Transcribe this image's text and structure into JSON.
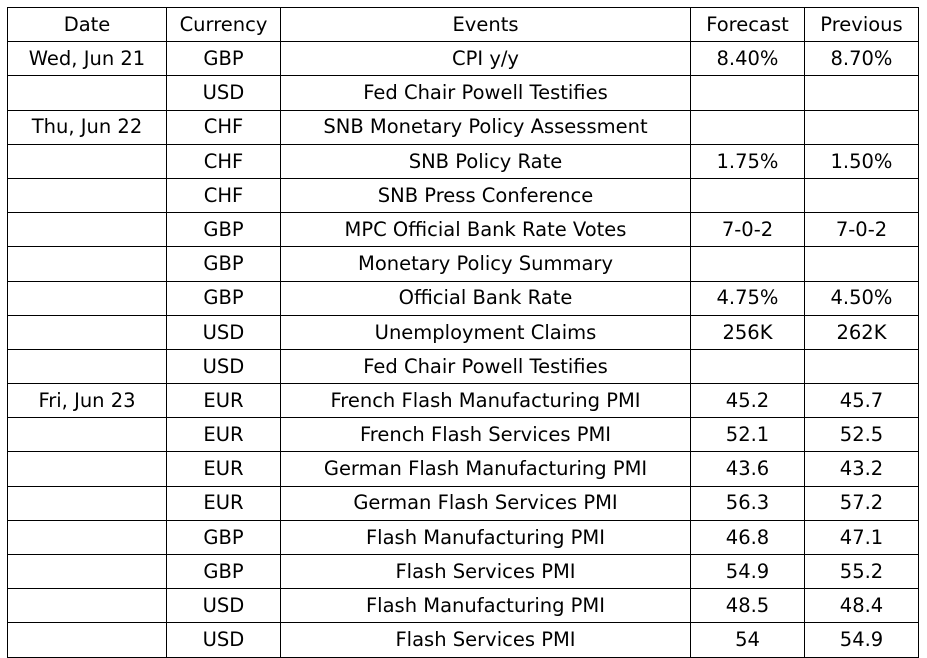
{
  "table": {
    "headers": {
      "date": "Date",
      "currency": "Currency",
      "events": "Events",
      "forecast": "Forecast",
      "previous": "Previous"
    },
    "rows": [
      {
        "date": "Wed, Jun 21",
        "currency": "GBP",
        "event": "CPI y/y",
        "forecast": "8.40%",
        "previous": "8.70%"
      },
      {
        "date": "",
        "currency": "USD",
        "event": "Fed Chair Powell Testifies",
        "forecast": "",
        "previous": ""
      },
      {
        "date": "Thu, Jun 22",
        "currency": "CHF",
        "event": "SNB Monetary Policy Assessment",
        "forecast": "",
        "previous": ""
      },
      {
        "date": "",
        "currency": "CHF",
        "event": "SNB Policy Rate",
        "forecast": "1.75%",
        "previous": "1.50%"
      },
      {
        "date": "",
        "currency": "CHF",
        "event": "SNB Press Conference",
        "forecast": "",
        "previous": ""
      },
      {
        "date": "",
        "currency": "GBP",
        "event": "MPC Official Bank Rate Votes",
        "forecast": "7-0-2",
        "previous": "7-0-2"
      },
      {
        "date": "",
        "currency": "GBP",
        "event": "Monetary Policy Summary",
        "forecast": "",
        "previous": ""
      },
      {
        "date": "",
        "currency": "GBP",
        "event": "Official Bank Rate",
        "forecast": "4.75%",
        "previous": "4.50%"
      },
      {
        "date": "",
        "currency": "USD",
        "event": "Unemployment Claims",
        "forecast": "256K",
        "previous": "262K"
      },
      {
        "date": "",
        "currency": "USD",
        "event": "Fed Chair Powell Testifies",
        "forecast": "",
        "previous": ""
      },
      {
        "date": "Fri, Jun 23",
        "currency": "EUR",
        "event": "French Flash Manufacturing PMI",
        "forecast": "45.2",
        "previous": "45.7"
      },
      {
        "date": "",
        "currency": "EUR",
        "event": "French Flash Services PMI",
        "forecast": "52.1",
        "previous": "52.5"
      },
      {
        "date": "",
        "currency": "EUR",
        "event": "German Flash Manufacturing PMI",
        "forecast": "43.6",
        "previous": "43.2"
      },
      {
        "date": "",
        "currency": "EUR",
        "event": "German Flash Services PMI",
        "forecast": "56.3",
        "previous": "57.2"
      },
      {
        "date": "",
        "currency": "GBP",
        "event": "Flash Manufacturing PMI",
        "forecast": "46.8",
        "previous": "47.1"
      },
      {
        "date": "",
        "currency": "GBP",
        "event": "Flash Services PMI",
        "forecast": "54.9",
        "previous": "55.2"
      },
      {
        "date": "",
        "currency": "USD",
        "event": "Flash Manufacturing PMI",
        "forecast": "48.5",
        "previous": "48.4"
      },
      {
        "date": "",
        "currency": "USD",
        "event": "Flash Services PMI",
        "forecast": "54",
        "previous": "54.9"
      }
    ]
  }
}
